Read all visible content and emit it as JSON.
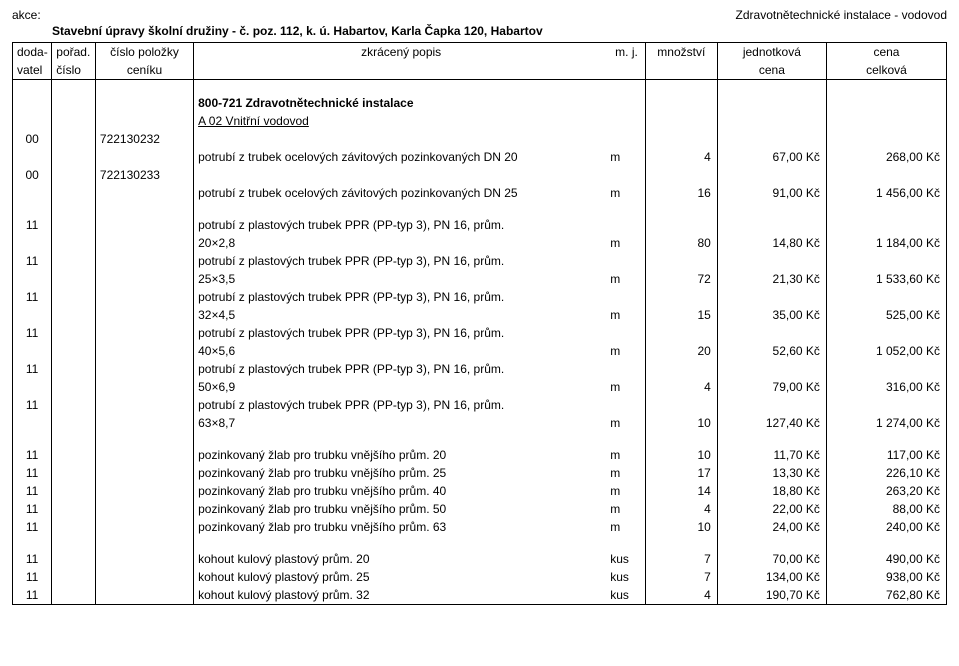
{
  "header": {
    "akce_label": "akce:",
    "right_title": "Zdravotnětechnické instalace - vodovod",
    "project_title": "Stavební úpravy školní družiny - č. poz. 112, k. ú. Habartov, Karla Čapka 120, Habartov"
  },
  "columns": {
    "r1": {
      "c1": "doda-",
      "c2": "pořad.",
      "c3": "číslo položky",
      "c4": "zkrácený popis",
      "c5": "m. j.",
      "c6": "množství",
      "c7": "jednotková",
      "c8": "cena"
    },
    "r2": {
      "c1": "vatel",
      "c2": "číslo",
      "c3": "ceníku",
      "c7": "cena",
      "c8": "celková"
    }
  },
  "section": {
    "title": "800-721 Zdravotnětechnické instalace",
    "sub": "A 02  Vnitřní vodovod"
  },
  "rows": [
    {
      "vatel": "00",
      "code": "722130232",
      "desc": "potrubí z trubek ocelových závitových pozinkovaných DN 20",
      "unit": "m",
      "qty": "4",
      "price": "67,00 Kč",
      "total": "268,00 Kč"
    },
    {
      "vatel": "00",
      "code": "722130233",
      "desc": "potrubí z trubek ocelových závitových pozinkovaných DN 25",
      "unit": "m",
      "qty": "16",
      "price": "91,00 Kč",
      "total": "1 456,00 Kč"
    }
  ],
  "pprRows": [
    {
      "vatel": "11",
      "l1": "potrubí z plastových trubek PPR (PP-typ 3), PN 16, prům.",
      "l2": "20×2,8",
      "unit": "m",
      "qty": "80",
      "price": "14,80 Kč",
      "total": "1 184,00 Kč"
    },
    {
      "vatel": "11",
      "l1": "potrubí z plastových trubek PPR (PP-typ 3), PN 16, prům.",
      "l2": "25×3,5",
      "unit": "m",
      "qty": "72",
      "price": "21,30 Kč",
      "total": "1 533,60 Kč"
    },
    {
      "vatel": "11",
      "l1": "potrubí z plastových trubek PPR (PP-typ 3), PN 16, prům.",
      "l2": "32×4,5",
      "unit": "m",
      "qty": "15",
      "price": "35,00 Kč",
      "total": "525,00 Kč"
    },
    {
      "vatel": "11",
      "l1": "potrubí z plastových trubek PPR (PP-typ 3), PN 16, prům.",
      "l2": "40×5,6",
      "unit": "m",
      "qty": "20",
      "price": "52,60 Kč",
      "total": "1 052,00 Kč"
    },
    {
      "vatel": "11",
      "l1": "potrubí z plastových trubek PPR (PP-typ 3), PN 16, prům.",
      "l2": "50×6,9",
      "unit": "m",
      "qty": "4",
      "price": "79,00 Kč",
      "total": "316,00 Kč"
    },
    {
      "vatel": "11",
      "l1": "potrubí z plastových trubek PPR (PP-typ 3), PN 16, prům.",
      "l2": "63×8,7",
      "unit": "m",
      "qty": "10",
      "price": "127,40 Kč",
      "total": "1 274,00 Kč"
    }
  ],
  "zlabRows": [
    {
      "vatel": "11",
      "desc": "pozinkovaný žlab pro trubku vnějšího  prům. 20",
      "unit": "m",
      "qty": "10",
      "price": "11,70 Kč",
      "total": "117,00 Kč"
    },
    {
      "vatel": "11",
      "desc": "pozinkovaný žlab pro trubku vnějšího  prům. 25",
      "unit": "m",
      "qty": "17",
      "price": "13,30 Kč",
      "total": "226,10 Kč"
    },
    {
      "vatel": "11",
      "desc": "pozinkovaný žlab pro trubku vnějšího  prům. 40",
      "unit": "m",
      "qty": "14",
      "price": "18,80 Kč",
      "total": "263,20 Kč"
    },
    {
      "vatel": "11",
      "desc": "pozinkovaný žlab pro trubku vnějšího  prům. 50",
      "unit": "m",
      "qty": "4",
      "price": "22,00 Kč",
      "total": "88,00 Kč"
    },
    {
      "vatel": "11",
      "desc": "pozinkovaný žlab pro trubku vnějšího  prům. 63",
      "unit": "m",
      "qty": "10",
      "price": "24,00 Kč",
      "total": "240,00 Kč"
    }
  ],
  "kohoutRows": [
    {
      "vatel": "11",
      "desc": "kohout kulový plastový prům. 20",
      "unit": "kus",
      "qty": "7",
      "price": "70,00 Kč",
      "total": "490,00 Kč"
    },
    {
      "vatel": "11",
      "desc": "kohout kulový plastový prům. 25",
      "unit": "kus",
      "qty": "7",
      "price": "134,00 Kč",
      "total": "938,00 Kč"
    },
    {
      "vatel": "11",
      "desc": "kohout kulový plastový prům. 32",
      "unit": "kus",
      "qty": "4",
      "price": "190,70 Kč",
      "total": "762,80 Kč"
    }
  ]
}
